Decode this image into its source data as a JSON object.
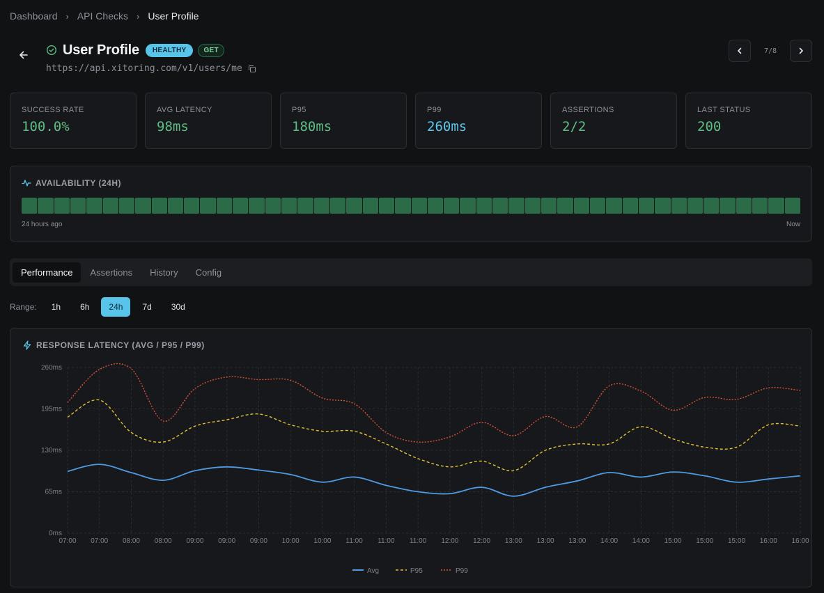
{
  "breadcrumb": [
    "Dashboard",
    "API Checks",
    "User Profile"
  ],
  "header": {
    "title": "User Profile",
    "status_badge": "HEALTHY",
    "method_badge": "GET",
    "url": "https://api.xitoring.com/v1/users/me",
    "pager": "7/8"
  },
  "metrics": [
    {
      "label": "SUCCESS RATE",
      "value": "100.0%",
      "color": "#5fbd84"
    },
    {
      "label": "AVG LATENCY",
      "value": "98ms",
      "color": "#5fbd84"
    },
    {
      "label": "P95",
      "value": "180ms",
      "color": "#5fbd84"
    },
    {
      "label": "P99",
      "value": "260ms",
      "color": "#5ec6ec"
    },
    {
      "label": "ASSERTIONS",
      "value": "2/2",
      "color": "#5fbd84"
    },
    {
      "label": "LAST STATUS",
      "value": "200",
      "color": "#5fbd84"
    }
  ],
  "availability": {
    "title": "AVAILABILITY (24H)",
    "bar_count": 48,
    "uptime_fraction": 1.0,
    "start_label": "24 hours ago",
    "end_label": "Now"
  },
  "tabs": [
    "Performance",
    "Assertions",
    "History",
    "Config"
  ],
  "active_tab": "Performance",
  "range": {
    "label": "Range:",
    "options": [
      "1h",
      "6h",
      "24h",
      "7d",
      "30d"
    ],
    "selected": "24h"
  },
  "chart_title": "RESPONSE LATENCY (AVG / P95 / P99)",
  "chart_data": {
    "type": "line",
    "title": "RESPONSE LATENCY (AVG / P95 / P99)",
    "xlabel": "",
    "ylabel": "",
    "x": [
      "07:00",
      "07:00",
      "08:00",
      "08:00",
      "09:00",
      "09:00",
      "09:00",
      "10:00",
      "10:00",
      "11:00",
      "11:00",
      "11:00",
      "12:00",
      "12:00",
      "13:00",
      "13:00",
      "13:00",
      "14:00",
      "14:00",
      "15:00",
      "15:00",
      "15:00",
      "16:00",
      "16:00"
    ],
    "yticks": [
      "0ms",
      "65ms",
      "130ms",
      "195ms",
      "260ms"
    ],
    "ylim": [
      0,
      260
    ],
    "grid": true,
    "legend": "bottom",
    "series": [
      {
        "name": "Avg",
        "style": "solid",
        "color": "#4f9ae0",
        "values": [
          97,
          108,
          95,
          83,
          98,
          104,
          99,
          92,
          80,
          88,
          75,
          65,
          62,
          72,
          58,
          72,
          82,
          95,
          88,
          96,
          90,
          80,
          85,
          90
        ]
      },
      {
        "name": "P95",
        "style": "dashed",
        "color": "#e3c135",
        "values": [
          182,
          209,
          158,
          143,
          168,
          178,
          187,
          170,
          160,
          160,
          140,
          117,
          104,
          113,
          98,
          130,
          140,
          140,
          167,
          148,
          135,
          135,
          170,
          168
        ]
      },
      {
        "name": "P99",
        "style": "dotted",
        "color": "#d9523a",
        "values": [
          205,
          257,
          258,
          176,
          227,
          245,
          241,
          240,
          212,
          203,
          158,
          143,
          151,
          174,
          153,
          183,
          167,
          231,
          223,
          193,
          213,
          210,
          228,
          224
        ]
      }
    ]
  }
}
